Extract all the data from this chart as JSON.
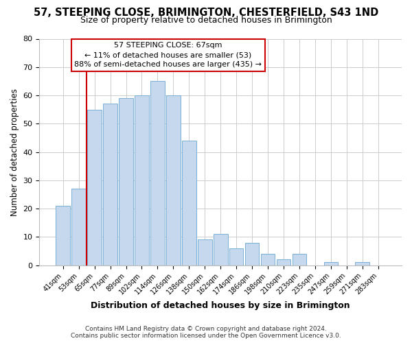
{
  "title": "57, STEEPING CLOSE, BRIMINGTON, CHESTERFIELD, S43 1ND",
  "subtitle": "Size of property relative to detached houses in Brimington",
  "xlabel": "Distribution of detached houses by size in Brimington",
  "ylabel": "Number of detached properties",
  "footer_line1": "Contains HM Land Registry data © Crown copyright and database right 2024.",
  "footer_line2": "Contains public sector information licensed under the Open Government Licence v3.0.",
  "bin_labels": [
    "41sqm",
    "53sqm",
    "65sqm",
    "77sqm",
    "89sqm",
    "102sqm",
    "114sqm",
    "126sqm",
    "138sqm",
    "150sqm",
    "162sqm",
    "174sqm",
    "186sqm",
    "198sqm",
    "210sqm",
    "223sqm",
    "235sqm",
    "247sqm",
    "259sqm",
    "271sqm",
    "283sqm"
  ],
  "bar_heights": [
    21,
    27,
    55,
    57,
    59,
    60,
    65,
    60,
    44,
    9,
    11,
    6,
    8,
    4,
    2,
    4,
    0,
    1,
    0,
    1,
    0
  ],
  "bar_color": "#c5d8ed",
  "bar_edge_color": "#7aafd4",
  "vline_x_index": 2,
  "vline_color": "#cc0000",
  "annotation_line1": "57 STEEPING CLOSE: 67sqm",
  "annotation_line2": "← 11% of detached houses are smaller (53)",
  "annotation_line3": "88% of semi-detached houses are larger (435) →",
  "annotation_box_color": "#ffffff",
  "annotation_box_edge_color": "#cc0000",
  "ylim": [
    0,
    80
  ],
  "yticks": [
    0,
    10,
    20,
    30,
    40,
    50,
    60,
    70,
    80
  ],
  "grid_color": "#cccccc",
  "background_color": "#ffffff"
}
